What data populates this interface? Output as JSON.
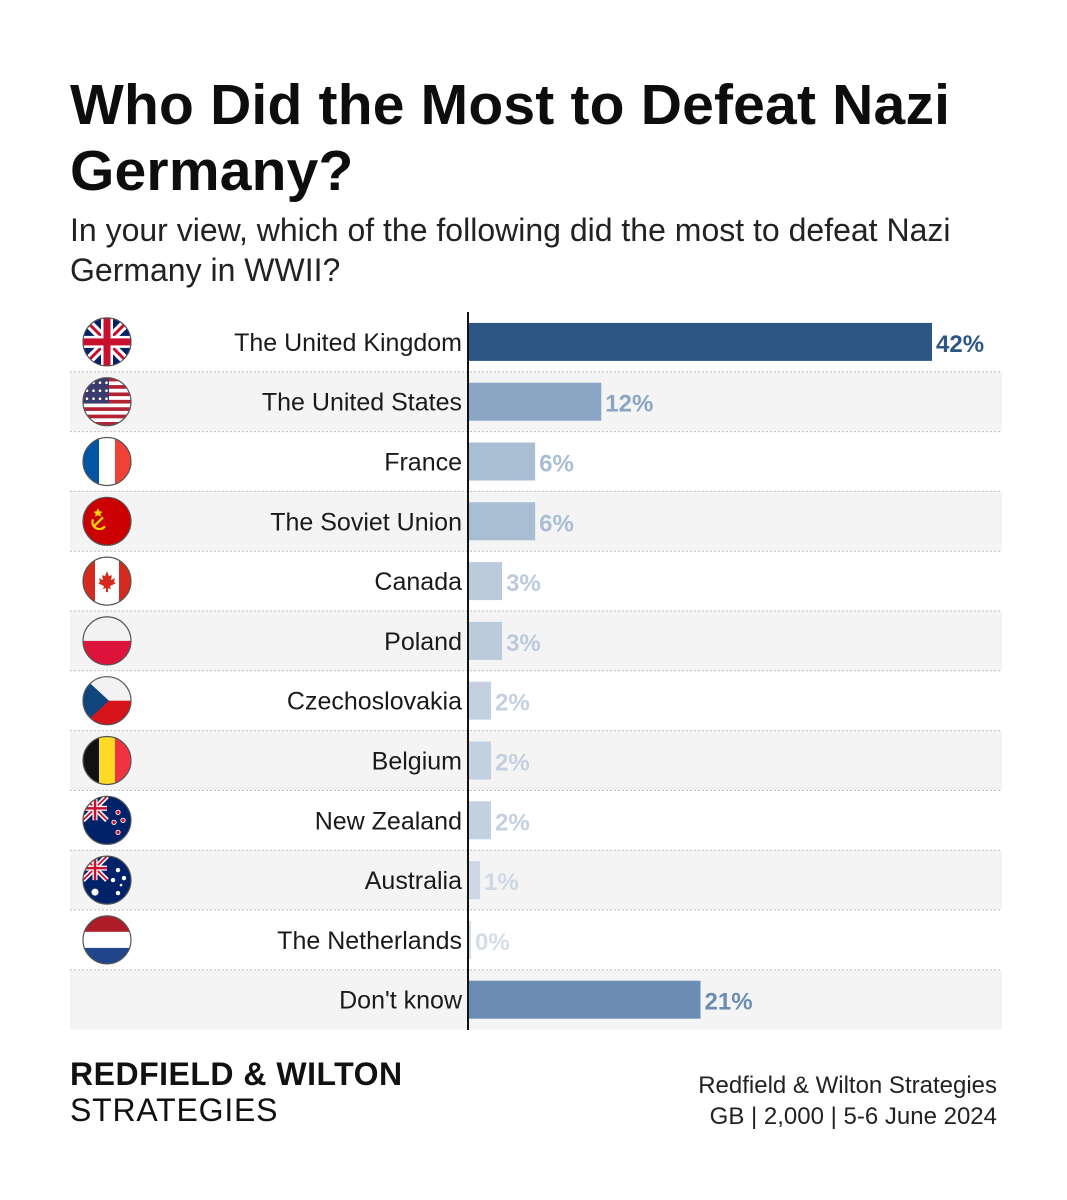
{
  "chart_data": {
    "type": "bar",
    "orientation": "horizontal",
    "title": "Who Did the Most to Defeat Nazi Germany?",
    "subtitle": "In your view, which of the following did the most to defeat Nazi Germany in WWII?",
    "categories": [
      "The United Kingdom",
      "The United States",
      "France",
      "The Soviet Union",
      "Canada",
      "Poland",
      "Czechoslovakia",
      "Belgium",
      "New Zealand",
      "Australia",
      "The Netherlands",
      "Don't know"
    ],
    "values": [
      42,
      12,
      6,
      6,
      3,
      3,
      2,
      2,
      2,
      1,
      0,
      21
    ],
    "data_labels": [
      "42%",
      "12%",
      "6%",
      "6%",
      "3%",
      "3%",
      "2%",
      "2%",
      "2%",
      "1%",
      "0%",
      "21%"
    ],
    "flags": [
      "uk-flag-icon",
      "us-flag-icon",
      "france-flag-icon",
      "soviet-flag-icon",
      "canada-flag-icon",
      "poland-flag-icon",
      "czechoslovakia-flag-icon",
      "belgium-flag-icon",
      "new-zealand-flag-icon",
      "australia-flag-icon",
      "netherlands-flag-icon",
      ""
    ],
    "bar_colors": [
      "#2c5784",
      "#8aa6c4",
      "#a9bdd3",
      "#a9bdd3",
      "#bccbdc",
      "#bccbdc",
      "#c3d0df",
      "#c3d0df",
      "#c3d0df",
      "#cdd8e4",
      "#d3dde8",
      "#6b8db3"
    ],
    "xlim": [
      0,
      42
    ],
    "grid": false,
    "legend": "none"
  },
  "brand": {
    "line1": "REDFIELD & WILTON",
    "line2": "STRATEGIES"
  },
  "source": {
    "line1": "Redfield & Wilton Strategies",
    "line2": "GB | 2,000 | 5-6 June 2024"
  }
}
